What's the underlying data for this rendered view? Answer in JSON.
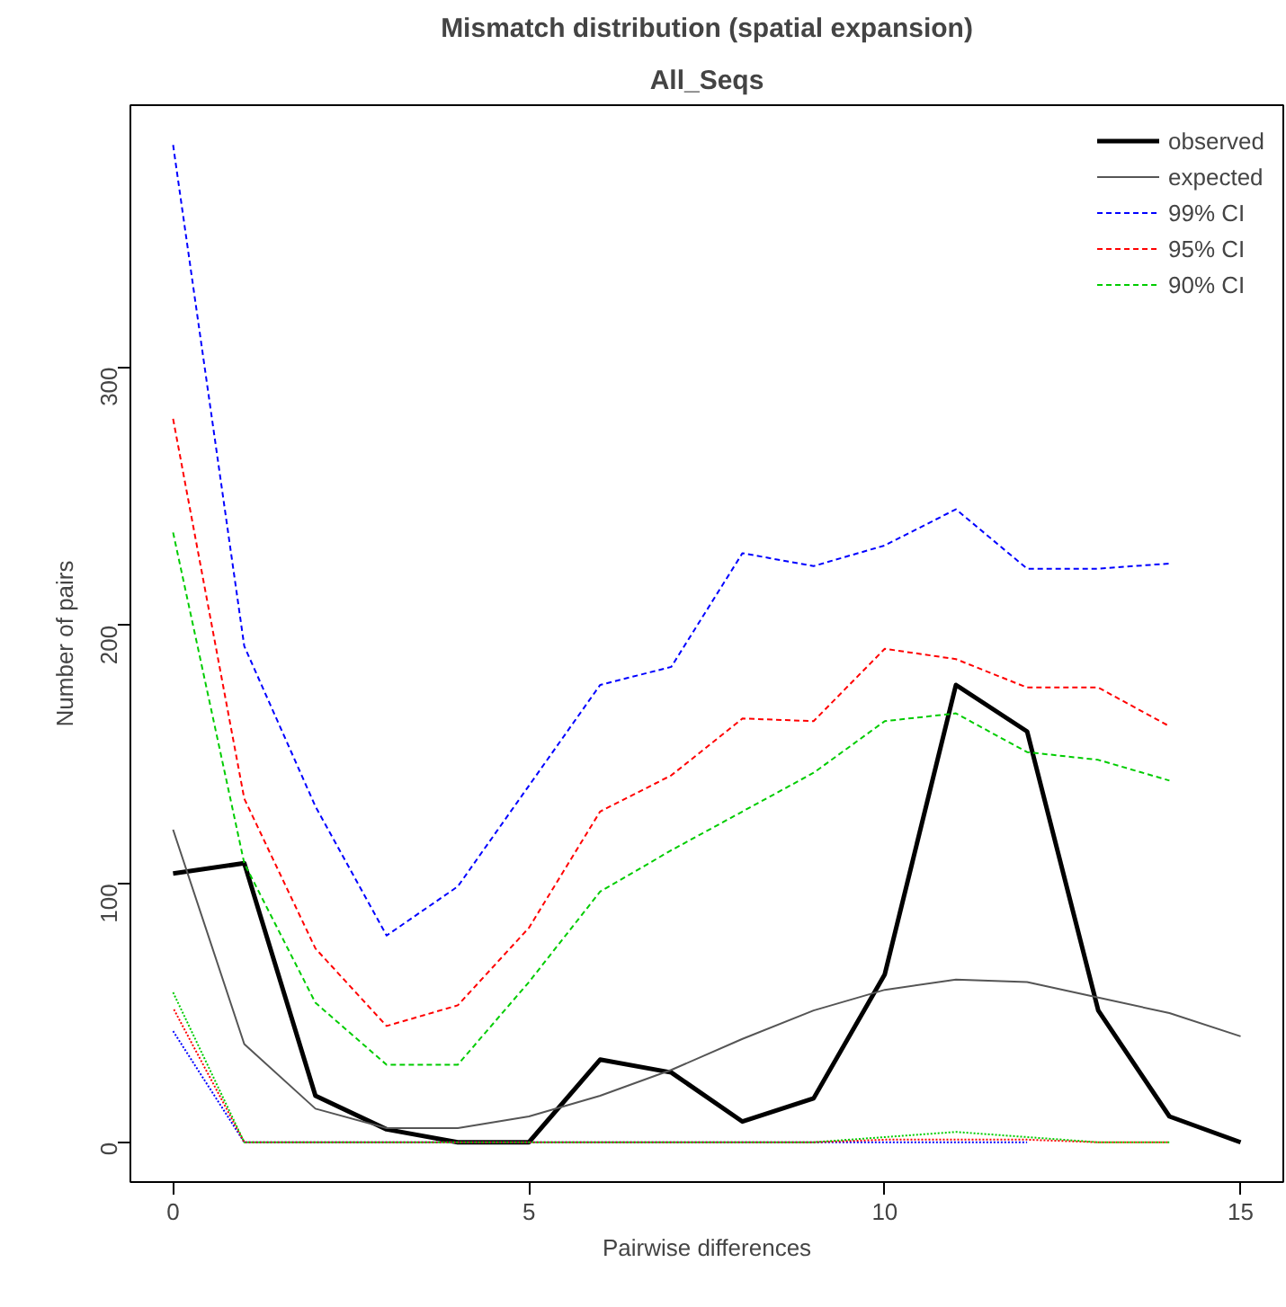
{
  "chart_data": {
    "type": "line",
    "title": "Mismatch distribution (spatial expansion)",
    "subtitle": "All_Seqs",
    "xlabel": "Pairwise differences",
    "ylabel": "Number of pairs",
    "x": [
      0,
      1,
      2,
      3,
      4,
      5,
      6,
      7,
      8,
      9,
      10,
      11,
      12,
      13,
      14,
      15
    ],
    "series": [
      {
        "name": "observed",
        "color": "#000000",
        "line_style": "solid",
        "values": [
          104,
          108,
          18,
          5,
          0,
          0,
          32,
          27,
          8,
          17,
          65,
          177,
          159,
          51,
          10,
          0
        ]
      },
      {
        "name": "expected",
        "color": "#555555",
        "line_style": "solid",
        "values": [
          121,
          38,
          13,
          5.5,
          5.5,
          10,
          18,
          28,
          40,
          51,
          59,
          63,
          62,
          56,
          50,
          41
        ]
      },
      {
        "name": "99% CI",
        "color": "#0000ff",
        "line_style": "dashed",
        "x": [
          0,
          1,
          2,
          3,
          4,
          5,
          6,
          7,
          8,
          9,
          10,
          11,
          12,
          13,
          14
        ],
        "values": [
          386,
          192,
          130,
          80,
          99,
          138,
          177,
          184,
          228,
          223,
          231,
          245,
          222,
          222,
          224
        ]
      },
      {
        "name": "95% CI",
        "color": "#ff0000",
        "line_style": "dashed",
        "x": [
          0,
          1,
          2,
          3,
          4,
          5,
          6,
          7,
          8,
          9,
          10,
          11,
          12,
          13,
          14
        ],
        "values": [
          280,
          133,
          75,
          45,
          53,
          83,
          128,
          142,
          164,
          163,
          191,
          187,
          176,
          176,
          161
        ]
      },
      {
        "name": "90% CI",
        "color": "#00cc00",
        "line_style": "dashed",
        "x": [
          0,
          1,
          2,
          3,
          4,
          5,
          6,
          7,
          8,
          9,
          10,
          11,
          12,
          13,
          14
        ],
        "values": [
          236,
          108,
          54,
          30,
          30,
          62,
          97,
          113,
          128,
          143,
          163,
          166,
          151,
          148,
          140
        ]
      },
      {
        "color": "#0000ff",
        "line_style": "dashed",
        "x": [
          0,
          1,
          2,
          3,
          4,
          5,
          6,
          7,
          8,
          9,
          10,
          11,
          12
        ],
        "values": [
          43,
          0,
          null,
          null,
          null,
          null,
          null,
          null,
          null,
          0,
          0,
          0,
          0
        ]
      },
      {
        "color": "#ff0000",
        "line_style": "dashed",
        "x": [
          0,
          1,
          2,
          3,
          4,
          5,
          6,
          7,
          8,
          9,
          10,
          11,
          12,
          13,
          14
        ],
        "values": [
          52,
          0,
          0,
          0,
          0,
          0,
          0,
          0,
          0,
          0,
          1,
          1,
          1,
          0,
          0
        ]
      },
      {
        "color": "#00cc00",
        "line_style": "dashed",
        "x": [
          0,
          1,
          2,
          3,
          4,
          5,
          6,
          7,
          8,
          9,
          10,
          11,
          12,
          13,
          14
        ],
        "values": [
          58,
          0,
          0,
          0,
          0,
          0,
          0,
          0,
          0,
          0,
          2,
          4,
          2,
          0,
          0
        ]
      }
    ],
    "xlim": [
      -0.6,
      15.6
    ],
    "ylim": [
      -15.4,
      401.4
    ],
    "xticks": [
      0,
      5,
      10,
      15
    ],
    "yticks": [
      0,
      100,
      200,
      300
    ],
    "grid": false,
    "legend": "top right",
    "marker": "none"
  }
}
